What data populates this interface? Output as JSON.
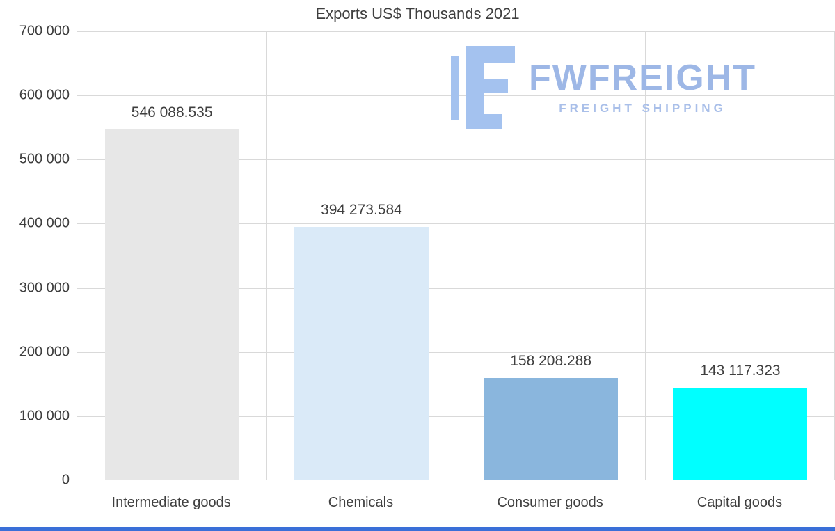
{
  "watermark": {
    "name": "FWFREIGHT",
    "tagline": "FREIGHT SHIPPING",
    "brand_color": "#9db7e6",
    "icon_color": "#a4c2ef"
  },
  "chart_data": {
    "type": "bar",
    "title": "Exports US$ Thousands 2021",
    "categories": [
      "Intermediate goods",
      "Chemicals",
      "Consumer goods",
      "Capital goods"
    ],
    "values": [
      546088.535,
      394273.584,
      158208.288,
      143117.323
    ],
    "value_labels": [
      "546 088.535",
      "394 273.584",
      "158 208.288",
      "143 117.323"
    ],
    "bar_colors": [
      "#e7e7e7",
      "#daeaf8",
      "#8ab6dd",
      "#00ffff"
    ],
    "xlabel": "",
    "ylabel": "",
    "ylim": [
      0,
      700000
    ],
    "ytick_step": 100000,
    "ytick_labels": [
      "0",
      "100 000",
      "200 000",
      "300 000",
      "400 000",
      "500 000",
      "600 000",
      "700 000"
    ],
    "grid": true,
    "legend": false
  },
  "colors": {
    "gridline": "#d9d9d9",
    "axis": "#b8b8b8",
    "text": "#3f3f3f",
    "bottom_bar": "#3a6fd8"
  }
}
